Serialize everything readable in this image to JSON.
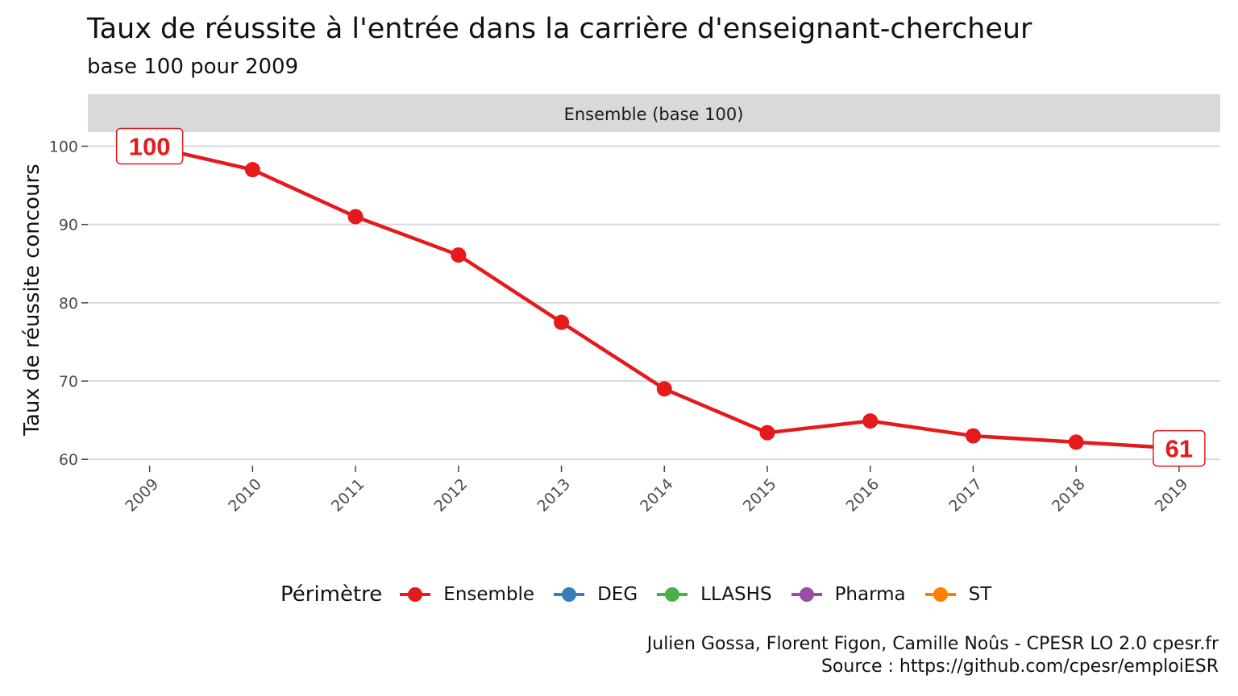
{
  "title": "Taux de réussite à l'entrée dans la carrière d'enseignant-chercheur",
  "subtitle": "base 100 pour 2009",
  "caption": {
    "line1": "Julien Gossa, Florent Figon, Camille Noûs - CPESR LO 2.0 cpesr.fr",
    "line2": "Source : https://github.com/cpesr/emploiESR"
  },
  "legend": {
    "title": "Périmètre",
    "items": [
      {
        "label": "Ensemble",
        "color": "#e41a1c"
      },
      {
        "label": "DEG",
        "color": "#377eb8"
      },
      {
        "label": "LLASHS",
        "color": "#4daf4a"
      },
      {
        "label": "Pharma",
        "color": "#984ea3"
      },
      {
        "label": "ST",
        "color": "#ff7f00"
      }
    ]
  },
  "chart_data": {
    "type": "line",
    "facet_label": "Ensemble (base 100)",
    "x": [
      2009,
      2010,
      2011,
      2012,
      2013,
      2014,
      2015,
      2016,
      2017,
      2018,
      2019
    ],
    "series": [
      {
        "name": "Ensemble",
        "color": "#e41a1c",
        "values": [
          100,
          97,
          91,
          86.1,
          77.5,
          69,
          63.4,
          64.9,
          63,
          62.2,
          61.4
        ]
      }
    ],
    "annotations": [
      {
        "x": 2009,
        "text": "100"
      },
      {
        "x": 2019,
        "text": "61"
      }
    ],
    "ylabel": "Taux de réussite concours",
    "xlabel": "",
    "yticks": [
      60,
      70,
      80,
      90,
      100
    ],
    "ylim": [
      59.2,
      101.8
    ],
    "grid": true,
    "legend_position": "bottom"
  }
}
